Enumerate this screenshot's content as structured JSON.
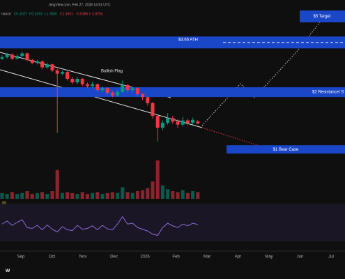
{
  "chart_data": {
    "type": "candlestick",
    "header": {
      "source": "dingView.com, Feb 27, 2026 14:51 UTC",
      "symbol": "nance",
      "open": "O1.4027",
      "high": "H1.4263",
      "low": "L1.3600",
      "close": "C1.3651",
      "change": "−0.0386 (−2.82%)"
    },
    "annotations": [
      {
        "label": "$5 Target",
        "level": 5
      },
      {
        "label": "$3.65 ATH",
        "level": 3.65
      },
      {
        "label": "$2 Resistance/ S",
        "level": 2
      },
      {
        "label": "$1 Bear Case",
        "level": 1
      }
    ],
    "pattern_label": "Bullish Flag",
    "rsi_label": ".05",
    "logo": "w",
    "categories": [
      "Sep",
      "Oct",
      "Nov",
      "Dec",
      "2026",
      "Feb",
      "Mar",
      "Apr",
      "May",
      "Jun",
      "Jul"
    ],
    "log_scale": true,
    "ylim": [
      0.55,
      6.1
    ],
    "up_color": "#089981",
    "down_color": "#f23645",
    "candles": [
      {
        "o": 3.0,
        "h": 3.12,
        "l": 2.95,
        "c": 3.05
      },
      {
        "o": 3.05,
        "h": 3.22,
        "l": 3.0,
        "c": 3.15
      },
      {
        "o": 3.15,
        "h": 3.2,
        "l": 2.95,
        "c": 3.0
      },
      {
        "o": 3.0,
        "h": 3.16,
        "l": 2.96,
        "c": 3.1
      },
      {
        "o": 3.1,
        "h": 3.26,
        "l": 3.05,
        "c": 3.2
      },
      {
        "o": 3.2,
        "h": 3.22,
        "l": 2.9,
        "c": 2.95
      },
      {
        "o": 2.95,
        "h": 3.0,
        "l": 2.8,
        "c": 2.85
      },
      {
        "o": 2.85,
        "h": 2.96,
        "l": 2.8,
        "c": 2.9
      },
      {
        "o": 2.9,
        "h": 2.94,
        "l": 2.65,
        "c": 2.7
      },
      {
        "o": 2.7,
        "h": 2.86,
        "l": 2.66,
        "c": 2.8
      },
      {
        "o": 2.8,
        "h": 2.82,
        "l": 2.55,
        "c": 2.6
      },
      {
        "o": 2.6,
        "h": 2.65,
        "l": 1.22,
        "c": 2.5
      },
      {
        "o": 2.5,
        "h": 2.6,
        "l": 2.45,
        "c": 2.55
      },
      {
        "o": 2.55,
        "h": 2.58,
        "l": 2.3,
        "c": 2.35
      },
      {
        "o": 2.35,
        "h": 2.4,
        "l": 2.2,
        "c": 2.25
      },
      {
        "o": 2.25,
        "h": 2.4,
        "l": 2.2,
        "c": 2.35
      },
      {
        "o": 2.35,
        "h": 2.38,
        "l": 2.15,
        "c": 2.2
      },
      {
        "o": 2.2,
        "h": 2.25,
        "l": 2.1,
        "c": 2.15
      },
      {
        "o": 2.15,
        "h": 2.26,
        "l": 2.1,
        "c": 2.2
      },
      {
        "o": 2.2,
        "h": 2.22,
        "l": 2.0,
        "c": 2.05
      },
      {
        "o": 2.05,
        "h": 2.15,
        "l": 2.0,
        "c": 2.1
      },
      {
        "o": 2.1,
        "h": 2.12,
        "l": 1.94,
        "c": 1.98
      },
      {
        "o": 1.98,
        "h": 2.02,
        "l": 1.88,
        "c": 1.92
      },
      {
        "o": 1.92,
        "h": 2.05,
        "l": 1.9,
        "c": 2.0
      },
      {
        "o": 2.0,
        "h": 2.3,
        "l": 1.98,
        "c": 2.18
      },
      {
        "o": 2.18,
        "h": 2.2,
        "l": 2.0,
        "c": 2.05
      },
      {
        "o": 2.05,
        "h": 2.14,
        "l": 2.0,
        "c": 2.1
      },
      {
        "o": 2.1,
        "h": 2.12,
        "l": 1.9,
        "c": 1.95
      },
      {
        "o": 1.95,
        "h": 1.98,
        "l": 1.82,
        "c": 1.88
      },
      {
        "o": 1.88,
        "h": 1.9,
        "l": 1.7,
        "c": 1.75
      },
      {
        "o": 1.75,
        "h": 1.78,
        "l": 1.45,
        "c": 1.5
      },
      {
        "o": 1.5,
        "h": 1.52,
        "l": 1.1,
        "c": 1.3
      },
      {
        "o": 1.3,
        "h": 1.42,
        "l": 1.26,
        "c": 1.38
      },
      {
        "o": 1.38,
        "h": 1.55,
        "l": 1.35,
        "c": 1.46
      },
      {
        "o": 1.46,
        "h": 1.5,
        "l": 1.36,
        "c": 1.4
      },
      {
        "o": 1.4,
        "h": 1.44,
        "l": 1.3,
        "c": 1.35
      },
      {
        "o": 1.35,
        "h": 1.48,
        "l": 1.32,
        "c": 1.42
      },
      {
        "o": 1.42,
        "h": 1.45,
        "l": 1.34,
        "c": 1.38
      },
      {
        "o": 1.38,
        "h": 1.47,
        "l": 1.35,
        "c": 1.43
      },
      {
        "o": 1.4027,
        "h": 1.4263,
        "l": 1.36,
        "c": 1.3651
      }
    ],
    "volume": [
      6,
      5,
      7,
      5,
      6,
      8,
      5,
      6,
      7,
      5,
      8,
      30,
      6,
      7,
      6,
      5,
      7,
      5,
      6,
      7,
      5,
      6,
      7,
      6,
      12,
      7,
      6,
      8,
      9,
      11,
      18,
      40,
      14,
      10,
      8,
      7,
      9,
      6,
      8,
      7
    ],
    "volume_lim": [
      0,
      40
    ],
    "rsi": [
      48,
      55,
      45,
      52,
      58,
      40,
      38,
      45,
      35,
      46,
      36,
      30,
      42,
      35,
      33,
      45,
      36,
      38,
      44,
      35,
      45,
      37,
      35,
      48,
      65,
      48,
      50,
      40,
      36,
      32,
      25,
      22,
      40,
      50,
      44,
      40,
      48,
      44,
      50,
      47
    ],
    "rsi_lim": [
      10,
      90
    ]
  }
}
